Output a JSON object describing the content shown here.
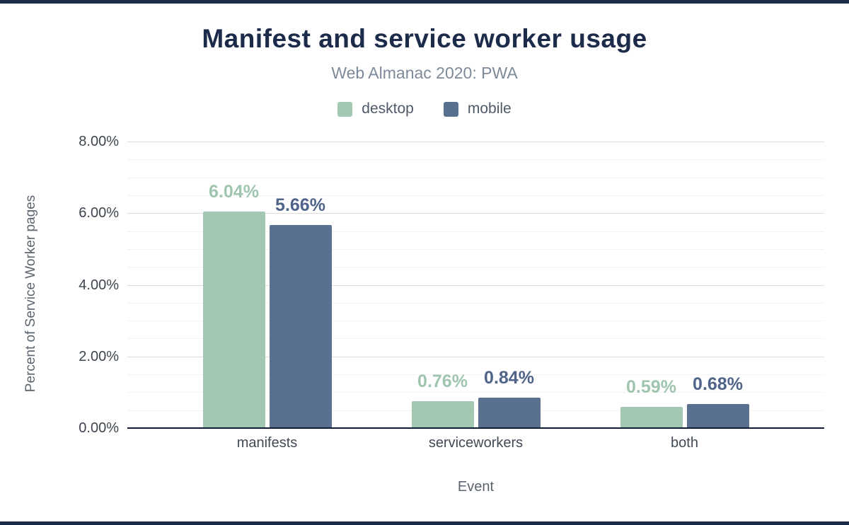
{
  "frame": {
    "border_color": "#1c2b4a"
  },
  "header": {
    "title": "Manifest and service worker usage",
    "subtitle": "Web Almanac 2020: PWA"
  },
  "chart_data": {
    "type": "bar",
    "title": "Manifest and service worker usage",
    "subtitle": "Web Almanac 2020: PWA",
    "categories": [
      "manifests",
      "serviceworkers",
      "both"
    ],
    "series": [
      {
        "name": "desktop",
        "color": "#a3c8b2",
        "label_color": "#9fc5ae",
        "values": [
          6.04,
          0.76,
          0.59
        ]
      },
      {
        "name": "mobile",
        "color": "#5a708f",
        "label_color": "#50648a",
        "values": [
          5.66,
          0.84,
          0.68
        ]
      }
    ],
    "xlabel": "Event",
    "ylabel": "Percent of Service Worker pages",
    "ylim": [
      0,
      8
    ],
    "yticks": [
      0,
      2,
      4,
      6,
      8
    ],
    "ytick_labels": [
      "0.00%",
      "2.00%",
      "4.00%",
      "6.00%",
      "8.00%"
    ],
    "minor_grid_step": 0.5,
    "grid": "horizontal",
    "legend_position": "top",
    "value_label_suffix": "%"
  }
}
